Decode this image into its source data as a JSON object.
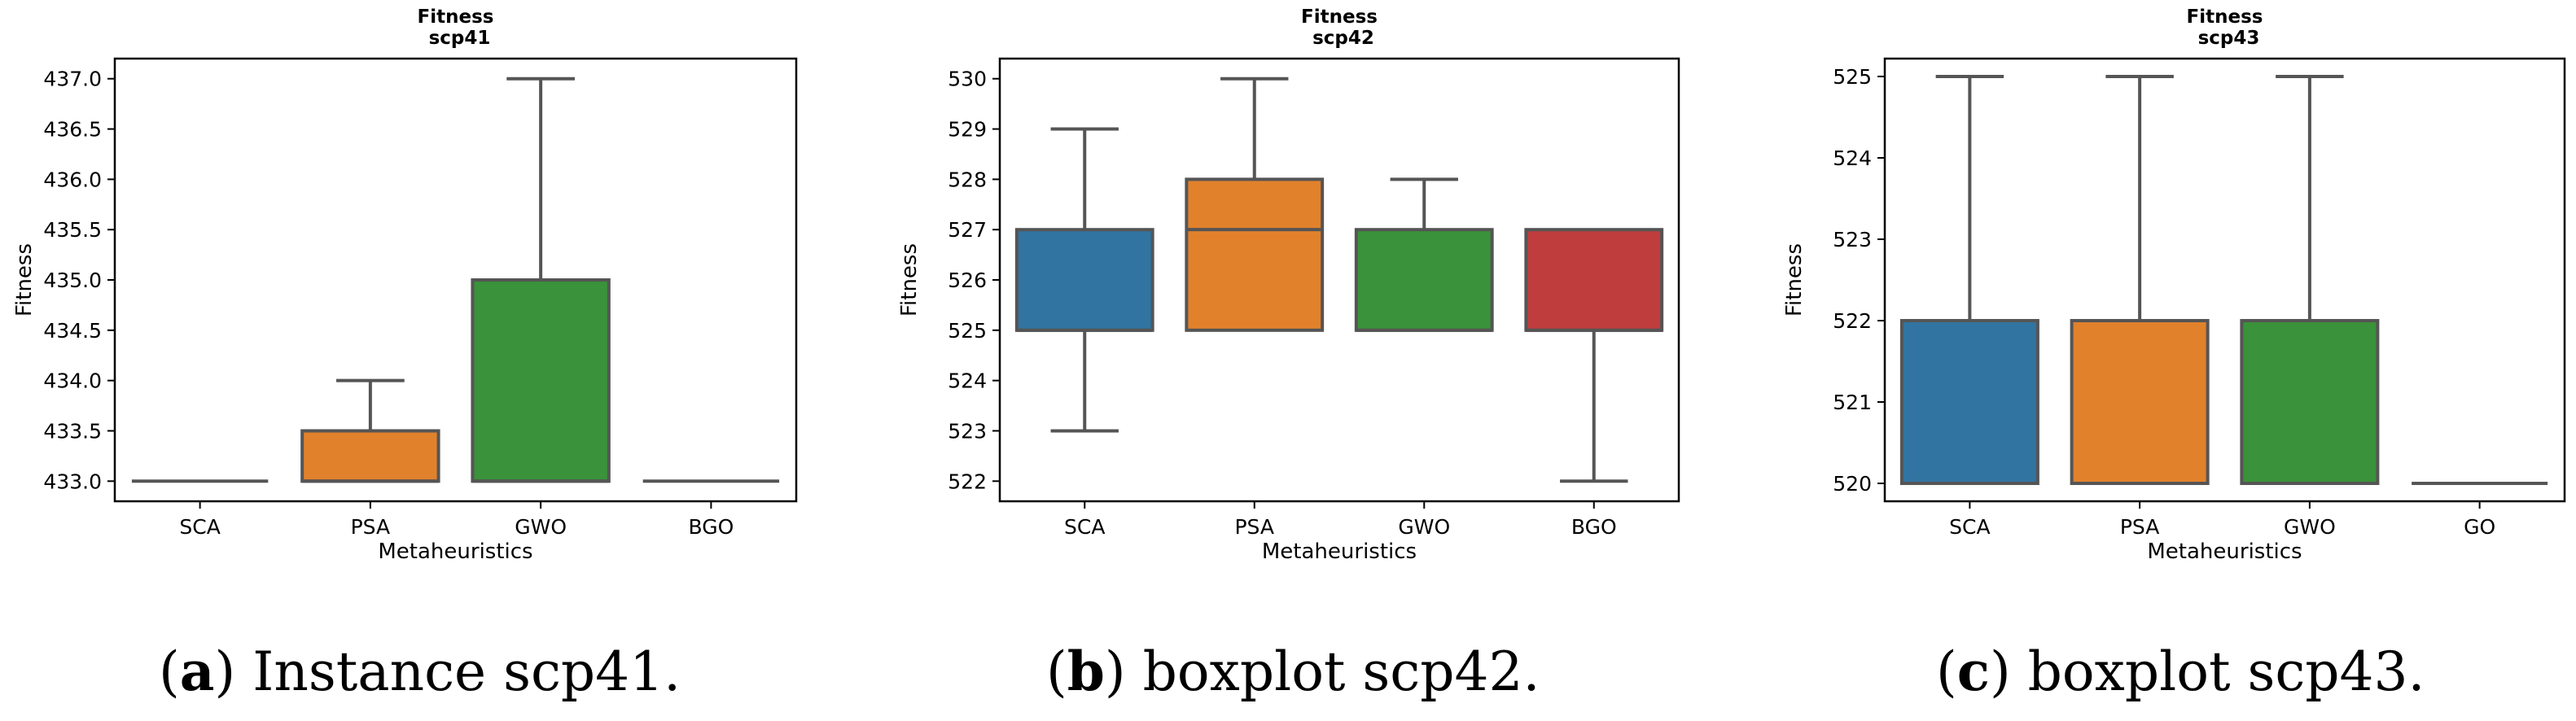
{
  "chart_data": [
    {
      "type": "boxplot",
      "title": "Fitness",
      "subtitle": "scp41",
      "xlabel": "Metaheuristics",
      "ylabel": "Fitness",
      "ylim": [
        432.8,
        437.2
      ],
      "yticks": [
        433.0,
        433.5,
        434.0,
        434.5,
        435.0,
        435.5,
        436.0,
        436.5,
        437.0
      ],
      "ytick_labels": [
        "433.0",
        "433.5",
        "434.0",
        "434.5",
        "435.0",
        "435.5",
        "436.0",
        "436.5",
        "437.0"
      ],
      "categories": [
        "SCA",
        "PSA",
        "GWO",
        "BGO"
      ],
      "series": [
        {
          "name": "SCA",
          "color": "#3274a1",
          "min": 433.0,
          "q1": 433.0,
          "median": 433.0,
          "q3": 433.0,
          "max": 433.0
        },
        {
          "name": "PSA",
          "color": "#e1812c",
          "min": 433.0,
          "q1": 433.0,
          "median": 433.0,
          "q3": 433.5,
          "max": 434.0
        },
        {
          "name": "GWO",
          "color": "#3a923a",
          "min": 433.0,
          "q1": 433.0,
          "median": 433.0,
          "q3": 435.0,
          "max": 437.0
        },
        {
          "name": "BGO",
          "color": "#c03d3e",
          "min": 433.0,
          "q1": 433.0,
          "median": 433.0,
          "q3": 433.0,
          "max": 433.0
        }
      ],
      "caption_letter": "a",
      "caption_text": " Instance scp41."
    },
    {
      "type": "boxplot",
      "title": "Fitness",
      "subtitle": "scp42",
      "xlabel": "Metaheuristics",
      "ylabel": "Fitness",
      "ylim": [
        521.6,
        530.4
      ],
      "yticks": [
        522,
        523,
        524,
        525,
        526,
        527,
        528,
        529,
        530
      ],
      "ytick_labels": [
        "522",
        "523",
        "524",
        "525",
        "526",
        "527",
        "528",
        "529",
        "530"
      ],
      "categories": [
        "SCA",
        "PSA",
        "GWO",
        "BGO"
      ],
      "series": [
        {
          "name": "SCA",
          "color": "#3274a1",
          "min": 523,
          "q1": 525,
          "median": 525,
          "q3": 527,
          "max": 529
        },
        {
          "name": "PSA",
          "color": "#e1812c",
          "min": 525,
          "q1": 525,
          "median": 527,
          "q3": 528,
          "max": 530
        },
        {
          "name": "GWO",
          "color": "#3a923a",
          "min": 525,
          "q1": 525,
          "median": 525,
          "q3": 527,
          "max": 528
        },
        {
          "name": "BGO",
          "color": "#c03d3e",
          "min": 522,
          "q1": 525,
          "median": 525,
          "q3": 527,
          "max": 527
        }
      ],
      "caption_letter": "b",
      "caption_text": " boxplot scp42."
    },
    {
      "type": "boxplot",
      "title": "Fitness",
      "subtitle": "scp43",
      "xlabel": "Metaheuristics",
      "ylabel": "Fitness",
      "ylim": [
        519.78,
        525.22
      ],
      "yticks": [
        520,
        521,
        522,
        523,
        524,
        525
      ],
      "ytick_labels": [
        "520",
        "521",
        "522",
        "523",
        "524",
        "525"
      ],
      "categories": [
        "SCA",
        "PSA",
        "GWO",
        "GO"
      ],
      "series": [
        {
          "name": "SCA",
          "color": "#3274a1",
          "min": 520,
          "q1": 520,
          "median": 520,
          "q3": 522,
          "max": 525
        },
        {
          "name": "PSA",
          "color": "#e1812c",
          "min": 520,
          "q1": 520,
          "median": 520,
          "q3": 522,
          "max": 525
        },
        {
          "name": "GWO",
          "color": "#3a923a",
          "min": 520,
          "q1": 520,
          "median": 520,
          "q3": 522,
          "max": 525
        },
        {
          "name": "GO",
          "color": "#c03d3e",
          "min": 520,
          "q1": 520,
          "median": 520,
          "q3": 520,
          "max": 520
        }
      ],
      "caption_letter": "c",
      "caption_text": " boxplot scp43."
    }
  ]
}
